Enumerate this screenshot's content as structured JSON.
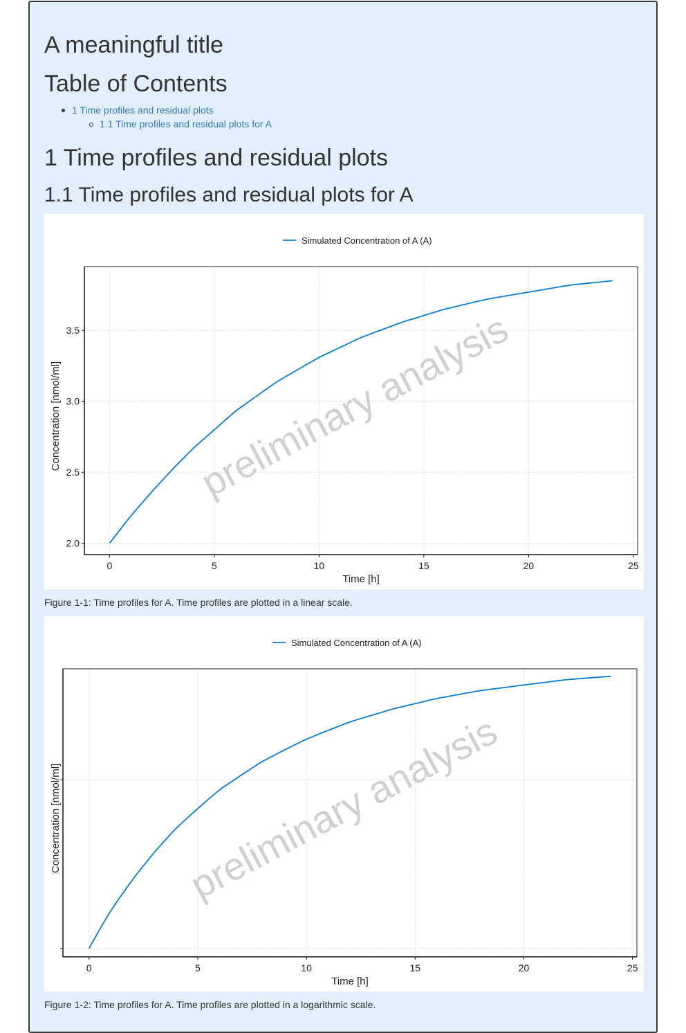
{
  "document": {
    "title": "A meaningful title",
    "toc_title": "Table of Contents",
    "toc": [
      {
        "label": "1 Time profiles and residual plots"
      },
      {
        "label": "1.1 Time profiles and residual plots for A"
      }
    ],
    "section_1": "1 Time profiles and residual plots",
    "section_1_1": "1.1 Time profiles and residual plots for A",
    "watermark": "preliminary analysis"
  },
  "colors": {
    "series": "#0a7bcf",
    "watermark": "#c8c8c8",
    "link": "#337ab7",
    "page_background": "#e3eefc"
  },
  "figures": [
    {
      "caption": "Figure 1-1: Time profiles for A. Time profiles are plotted in a linear scale."
    },
    {
      "caption": "Figure 1-2: Time profiles for A. Time profiles are plotted in a logarithmic scale."
    }
  ],
  "chart_data": [
    {
      "type": "line",
      "xlabel": "Time [h]",
      "ylabel": "Concentration [nmol/ml]",
      "xlim": [
        -1.2,
        25.2
      ],
      "ylim": [
        1.92,
        3.95
      ],
      "xticks": [
        0,
        5,
        10,
        15,
        20,
        25
      ],
      "yticks": [
        2.0,
        2.5,
        3.0,
        3.5
      ],
      "ytick_labels": [
        "2.0",
        "2.5",
        "3.0",
        "3.5"
      ],
      "yscale": "linear",
      "grid": "dotted",
      "legend": "top-center",
      "series": [
        {
          "name": "Simulated Concentration of A (A)",
          "x": [
            0,
            1,
            2,
            3,
            4,
            5,
            6,
            8,
            10,
            12,
            14,
            16,
            18,
            20,
            22,
            24
          ],
          "y": [
            2.0,
            2.19,
            2.36,
            2.52,
            2.67,
            2.8,
            2.93,
            3.14,
            3.31,
            3.45,
            3.56,
            3.65,
            3.72,
            3.77,
            3.82,
            3.85
          ]
        }
      ]
    },
    {
      "type": "line",
      "xlabel": "Time [h]",
      "ylabel": "Concentration [nmol/ml]",
      "xlim": [
        -1.2,
        25.2
      ],
      "ylim": [
        1.96,
        3.92
      ],
      "xticks": [
        0,
        5,
        10,
        15,
        20,
        25
      ],
      "yticks": [
        2.0,
        3.0
      ],
      "ytick_labels": [
        "",
        ""
      ],
      "yscale": "log",
      "grid": "dotted",
      "legend": "top-center",
      "series": [
        {
          "name": "Simulated Concentration of A (A)",
          "x": [
            0,
            1,
            2,
            3,
            4,
            5,
            6,
            8,
            10,
            12,
            14,
            16,
            18,
            20,
            22,
            24
          ],
          "y": [
            2.0,
            2.19,
            2.36,
            2.52,
            2.67,
            2.8,
            2.93,
            3.14,
            3.31,
            3.45,
            3.56,
            3.65,
            3.72,
            3.77,
            3.82,
            3.85
          ]
        }
      ]
    }
  ]
}
